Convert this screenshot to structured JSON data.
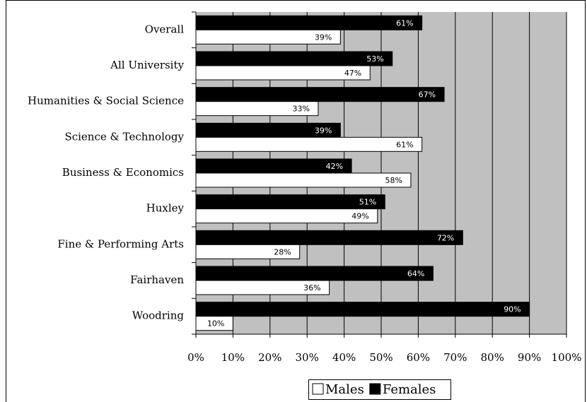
{
  "chart_data": {
    "type": "bar",
    "orientation": "horizontal",
    "categories": [
      "Overall",
      "All University",
      "Humanities & Social Science",
      "Science & Technology",
      "Business & Economics",
      "Huxley",
      "Fine & Performing Arts",
      "Fairhaven",
      "Woodring"
    ],
    "series": [
      {
        "name": "Males",
        "color": "#ffffff",
        "values": [
          39,
          47,
          33,
          61,
          58,
          49,
          28,
          36,
          10
        ],
        "value_labels": [
          "39%",
          "47%",
          "33%",
          "61%",
          "58%",
          "49%",
          "28%",
          "36%",
          "10%"
        ]
      },
      {
        "name": "Females",
        "color": "#000000",
        "values": [
          61,
          53,
          67,
          39,
          42,
          51,
          72,
          64,
          90
        ],
        "value_labels": [
          "61%",
          "53%",
          "67%",
          "39%",
          "42%",
          "51%",
          "72%",
          "64%",
          "90%"
        ]
      }
    ],
    "xlim": [
      0,
      100
    ],
    "xticks": [
      {
        "value": 0,
        "label": "0%"
      },
      {
        "value": 10,
        "label": "10%"
      },
      {
        "value": 20,
        "label": "20%"
      },
      {
        "value": 30,
        "label": "30%"
      },
      {
        "value": 40,
        "label": "40%"
      },
      {
        "value": 50,
        "label": "50%"
      },
      {
        "value": 60,
        "label": "60%"
      },
      {
        "value": 70,
        "label": "70%"
      },
      {
        "value": 80,
        "label": "80%"
      },
      {
        "value": 90,
        "label": "90%"
      },
      {
        "value": 100,
        "label": "100%"
      }
    ],
    "grid": true,
    "legend": "bottom",
    "plot_background": "#c0c0c0"
  }
}
